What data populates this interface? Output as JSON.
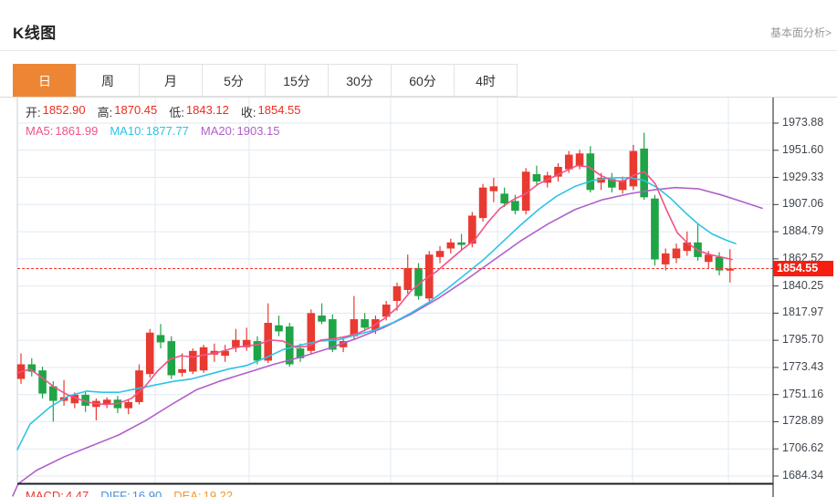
{
  "header": {
    "title": "K线图",
    "link": "基本面分析>"
  },
  "tabs": [
    {
      "label": "日",
      "active": true
    },
    {
      "label": "周",
      "active": false
    },
    {
      "label": "月",
      "active": false
    },
    {
      "label": "5分",
      "active": false
    },
    {
      "label": "15分",
      "active": false
    },
    {
      "label": "30分",
      "active": false
    },
    {
      "label": "60分",
      "active": false
    },
    {
      "label": "4时",
      "active": false
    }
  ],
  "info": {
    "ohlc": [
      {
        "name": "open",
        "label": "开:",
        "value": "1852.90"
      },
      {
        "name": "high",
        "label": "高:",
        "value": "1870.45"
      },
      {
        "name": "low",
        "label": "低:",
        "value": "1843.12"
      },
      {
        "name": "close",
        "label": "收:",
        "value": "1854.55"
      }
    ],
    "ma": [
      {
        "name": "ma5",
        "label": "MA5:",
        "value": "1861.99",
        "color": "#f0538c"
      },
      {
        "name": "ma10",
        "label": "MA10:",
        "value": "1877.77",
        "color": "#2ec3e6"
      },
      {
        "name": "ma20",
        "label": "MA20:",
        "value": "1903.15",
        "color": "#b25fc9"
      }
    ]
  },
  "macd": [
    {
      "name": "macd",
      "label": "MACD:",
      "value": "4.47",
      "color": "#e8392f"
    },
    {
      "name": "diff",
      "label": "DIFF:",
      "value": "16.90",
      "color": "#4a8fd8"
    },
    {
      "name": "dea",
      "label": "DEA:",
      "value": "19.22",
      "color": "#f2982e"
    }
  ],
  "chart_data": {
    "type": "candlestick",
    "title": "K线图",
    "period": "日",
    "current_price": "1854.55",
    "y_axis": {
      "side": "right",
      "ticks": [
        "1973.88",
        "1951.60",
        "1929.33",
        "1907.06",
        "1884.79",
        "1862.52",
        "1840.25",
        "1817.97",
        "1795.70",
        "1773.43",
        "1751.16",
        "1728.89",
        "1706.62",
        "1684.34"
      ]
    },
    "grid": {
      "vertical_x": [
        170,
        273,
        428,
        545,
        693,
        798
      ]
    },
    "colors": {
      "up": "#e83a30",
      "down": "#1fa446",
      "ma5": "#f0538c",
      "ma10": "#2ec3e6",
      "ma20": "#b25fc9",
      "grid": "#e2eaf2",
      "axis": "#3a3f45",
      "border_dark": "#1b1f26",
      "left_border": "#c9d2da",
      "current_line": "#f5382c",
      "badge_bg": "#f51e10",
      "badge_text": "#ffffff"
    },
    "candles": [
      [
        1764,
        1785,
        1760,
        1776
      ],
      [
        1776,
        1781,
        1766,
        1770
      ],
      [
        1771,
        1774,
        1748,
        1752
      ],
      [
        1758,
        1762,
        1729,
        1746
      ],
      [
        1746,
        1763,
        1742,
        1749
      ],
      [
        1744,
        1753,
        1740,
        1751
      ],
      [
        1751,
        1754,
        1737,
        1742
      ],
      [
        1741,
        1748,
        1730,
        1746
      ],
      [
        1743,
        1749,
        1740,
        1747
      ],
      [
        1747,
        1750,
        1736,
        1740
      ],
      [
        1740,
        1747,
        1735,
        1745
      ],
      [
        1745,
        1776,
        1743,
        1771
      ],
      [
        1768,
        1805,
        1765,
        1802
      ],
      [
        1800,
        1809,
        1789,
        1794
      ],
      [
        1795,
        1799,
        1764,
        1767
      ],
      [
        1769,
        1785,
        1766,
        1772
      ],
      [
        1770,
        1789,
        1768,
        1787
      ],
      [
        1771,
        1792,
        1769,
        1790
      ],
      [
        1784,
        1793,
        1778,
        1787
      ],
      [
        1783,
        1792,
        1778,
        1787
      ],
      [
        1790,
        1805,
        1786,
        1796
      ],
      [
        1790,
        1806,
        1787,
        1796
      ],
      [
        1795,
        1799,
        1776,
        1779
      ],
      [
        1779,
        1826,
        1777,
        1810
      ],
      [
        1808,
        1816,
        1799,
        1803
      ],
      [
        1807,
        1810,
        1774,
        1776
      ],
      [
        1789,
        1793,
        1778,
        1781
      ],
      [
        1787,
        1821,
        1784,
        1818
      ],
      [
        1816,
        1826,
        1809,
        1811
      ],
      [
        1813,
        1817,
        1786,
        1788
      ],
      [
        1790,
        1798,
        1786,
        1795
      ],
      [
        1799,
        1832,
        1796,
        1813
      ],
      [
        1813,
        1818,
        1803,
        1806
      ],
      [
        1804,
        1816,
        1801,
        1813
      ],
      [
        1815,
        1828,
        1812,
        1825
      ],
      [
        1828,
        1843,
        1820,
        1840
      ],
      [
        1837,
        1866,
        1834,
        1855
      ],
      [
        1855,
        1859,
        1829,
        1832
      ],
      [
        1830,
        1869,
        1828,
        1866
      ],
      [
        1864,
        1873,
        1859,
        1869
      ],
      [
        1871,
        1879,
        1867,
        1876
      ],
      [
        1876,
        1883,
        1869,
        1874
      ],
      [
        1875,
        1901,
        1872,
        1898
      ],
      [
        1896,
        1924,
        1893,
        1921
      ],
      [
        1918,
        1929,
        1909,
        1922
      ],
      [
        1916,
        1921,
        1905,
        1908
      ],
      [
        1910,
        1915,
        1899,
        1902
      ],
      [
        1902,
        1937,
        1899,
        1934
      ],
      [
        1932,
        1939,
        1923,
        1926
      ],
      [
        1925,
        1934,
        1921,
        1931
      ],
      [
        1930,
        1941,
        1926,
        1938
      ],
      [
        1936,
        1951,
        1933,
        1948
      ],
      [
        1939,
        1952,
        1936,
        1949
      ],
      [
        1949,
        1955,
        1917,
        1919
      ],
      [
        1925,
        1933,
        1919,
        1929
      ],
      [
        1928,
        1933,
        1917,
        1921
      ],
      [
        1919,
        1930,
        1916,
        1927
      ],
      [
        1922,
        1956,
        1919,
        1951
      ],
      [
        1953,
        1966,
        1911,
        1913
      ],
      [
        1912,
        1915,
        1857,
        1862
      ],
      [
        1858,
        1871,
        1853,
        1867
      ],
      [
        1863,
        1875,
        1859,
        1871
      ],
      [
        1869,
        1885,
        1865,
        1876
      ],
      [
        1876,
        1891,
        1861,
        1864
      ],
      [
        1860,
        1869,
        1855,
        1866
      ],
      [
        1864,
        1868,
        1849,
        1853
      ],
      [
        1852.9,
        1870.45,
        1843.12,
        1854.55
      ]
    ],
    "ma_lines": {
      "ma5": [
        [
          19,
          1769
        ],
        [
          33,
          1772
        ],
        [
          46,
          1765
        ],
        [
          60,
          1757
        ],
        [
          74,
          1751
        ],
        [
          88,
          1747
        ],
        [
          102,
          1744
        ],
        [
          116,
          1743
        ],
        [
          130,
          1744
        ],
        [
          144,
          1748
        ],
        [
          158,
          1757
        ],
        [
          172,
          1770
        ],
        [
          186,
          1780
        ],
        [
          198,
          1783
        ],
        [
          212,
          1782
        ],
        [
          226,
          1784
        ],
        [
          240,
          1786
        ],
        [
          254,
          1789
        ],
        [
          268,
          1791
        ],
        [
          282,
          1792
        ],
        [
          296,
          1796
        ],
        [
          310,
          1795
        ],
        [
          324,
          1790
        ],
        [
          338,
          1791
        ],
        [
          352,
          1796
        ],
        [
          366,
          1797
        ],
        [
          380,
          1799
        ],
        [
          394,
          1802
        ],
        [
          408,
          1807
        ],
        [
          422,
          1814
        ],
        [
          436,
          1823
        ],
        [
          450,
          1836
        ],
        [
          464,
          1845
        ],
        [
          478,
          1852
        ],
        [
          492,
          1861
        ],
        [
          506,
          1870
        ],
        [
          520,
          1878
        ],
        [
          534,
          1892
        ],
        [
          548,
          1904
        ],
        [
          562,
          1911
        ],
        [
          576,
          1916
        ],
        [
          590,
          1924
        ],
        [
          604,
          1929
        ],
        [
          618,
          1934
        ],
        [
          632,
          1939
        ],
        [
          645,
          1938
        ],
        [
          658,
          1931
        ],
        [
          670,
          1927
        ],
        [
          682,
          1926
        ],
        [
          694,
          1931
        ],
        [
          706,
          1934
        ],
        [
          718,
          1924
        ],
        [
          730,
          1903
        ],
        [
          742,
          1884
        ],
        [
          754,
          1875
        ],
        [
          766,
          1869
        ],
        [
          778,
          1866
        ],
        [
          790,
          1864
        ],
        [
          802,
          1862
        ]
      ],
      "ma10": [
        [
          19,
          1706
        ],
        [
          33,
          1727
        ],
        [
          55,
          1741
        ],
        [
          75,
          1750
        ],
        [
          95,
          1754
        ],
        [
          112,
          1753
        ],
        [
          130,
          1753
        ],
        [
          150,
          1756
        ],
        [
          170,
          1759
        ],
        [
          190,
          1762
        ],
        [
          210,
          1764
        ],
        [
          230,
          1768
        ],
        [
          250,
          1772
        ],
        [
          270,
          1775
        ],
        [
          290,
          1781
        ],
        [
          310,
          1788
        ],
        [
          330,
          1792
        ],
        [
          350,
          1795
        ],
        [
          370,
          1796
        ],
        [
          390,
          1800
        ],
        [
          410,
          1804
        ],
        [
          430,
          1810
        ],
        [
          450,
          1818
        ],
        [
          470,
          1827
        ],
        [
          490,
          1838
        ],
        [
          510,
          1850
        ],
        [
          530,
          1862
        ],
        [
          550,
          1876
        ],
        [
          570,
          1890
        ],
        [
          590,
          1903
        ],
        [
          610,
          1914
        ],
        [
          630,
          1922
        ],
        [
          650,
          1927
        ],
        [
          670,
          1929
        ],
        [
          690,
          1929
        ],
        [
          705,
          1927
        ],
        [
          720,
          1921
        ],
        [
          735,
          1912
        ],
        [
          750,
          1901
        ],
        [
          765,
          1891
        ],
        [
          780,
          1883
        ],
        [
          795,
          1878
        ],
        [
          806,
          1875
        ]
      ],
      "ma20": [
        [
          14,
          1668
        ],
        [
          20,
          1678
        ],
        [
          40,
          1689
        ],
        [
          70,
          1700
        ],
        [
          100,
          1709
        ],
        [
          130,
          1718
        ],
        [
          160,
          1730
        ],
        [
          190,
          1744
        ],
        [
          215,
          1755
        ],
        [
          240,
          1762
        ],
        [
          270,
          1769
        ],
        [
          300,
          1776
        ],
        [
          330,
          1782
        ],
        [
          360,
          1789
        ],
        [
          390,
          1797
        ],
        [
          420,
          1806
        ],
        [
          450,
          1817
        ],
        [
          480,
          1830
        ],
        [
          510,
          1845
        ],
        [
          540,
          1861
        ],
        [
          570,
          1877
        ],
        [
          600,
          1891
        ],
        [
          630,
          1903
        ],
        [
          660,
          1911
        ],
        [
          690,
          1916
        ],
        [
          715,
          1919
        ],
        [
          740,
          1921
        ],
        [
          765,
          1920
        ],
        [
          790,
          1915
        ],
        [
          815,
          1909
        ],
        [
          835,
          1904
        ]
      ]
    }
  }
}
